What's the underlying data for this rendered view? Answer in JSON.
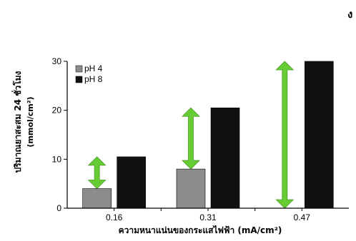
{
  "corner_text": "ง",
  "chart_data": {
    "type": "bar",
    "categories": [
      "0.16",
      "0.31",
      "0.47"
    ],
    "series": [
      {
        "name": "pH 4",
        "color": "#8c8c8c",
        "values": [
          4,
          8,
          0
        ]
      },
      {
        "name": "pH 8",
        "color": "#111111",
        "values": [
          10.5,
          20.5,
          30
        ]
      }
    ],
    "y_ticks": [
      "0",
      "10",
      "20",
      "30"
    ],
    "ylim": [
      0,
      30
    ],
    "ylabel_line1": "ปริมาณยาสะสม 24 ชั่วโมง",
    "ylabel_line2": "(mmol/cm²)",
    "xlabel": "ความหนาแน่นของกระแสไฟฟ้า (mA/cm²)",
    "legend_position": "top-left",
    "grid": false,
    "arrow_color": "#66cc33",
    "arrow_annotations": [
      {
        "category": "0.16",
        "from": 4,
        "to": 10.5
      },
      {
        "category": "0.31",
        "from": 8,
        "to": 20.5
      },
      {
        "category": "0.47",
        "from": 0,
        "to": 30
      }
    ]
  }
}
